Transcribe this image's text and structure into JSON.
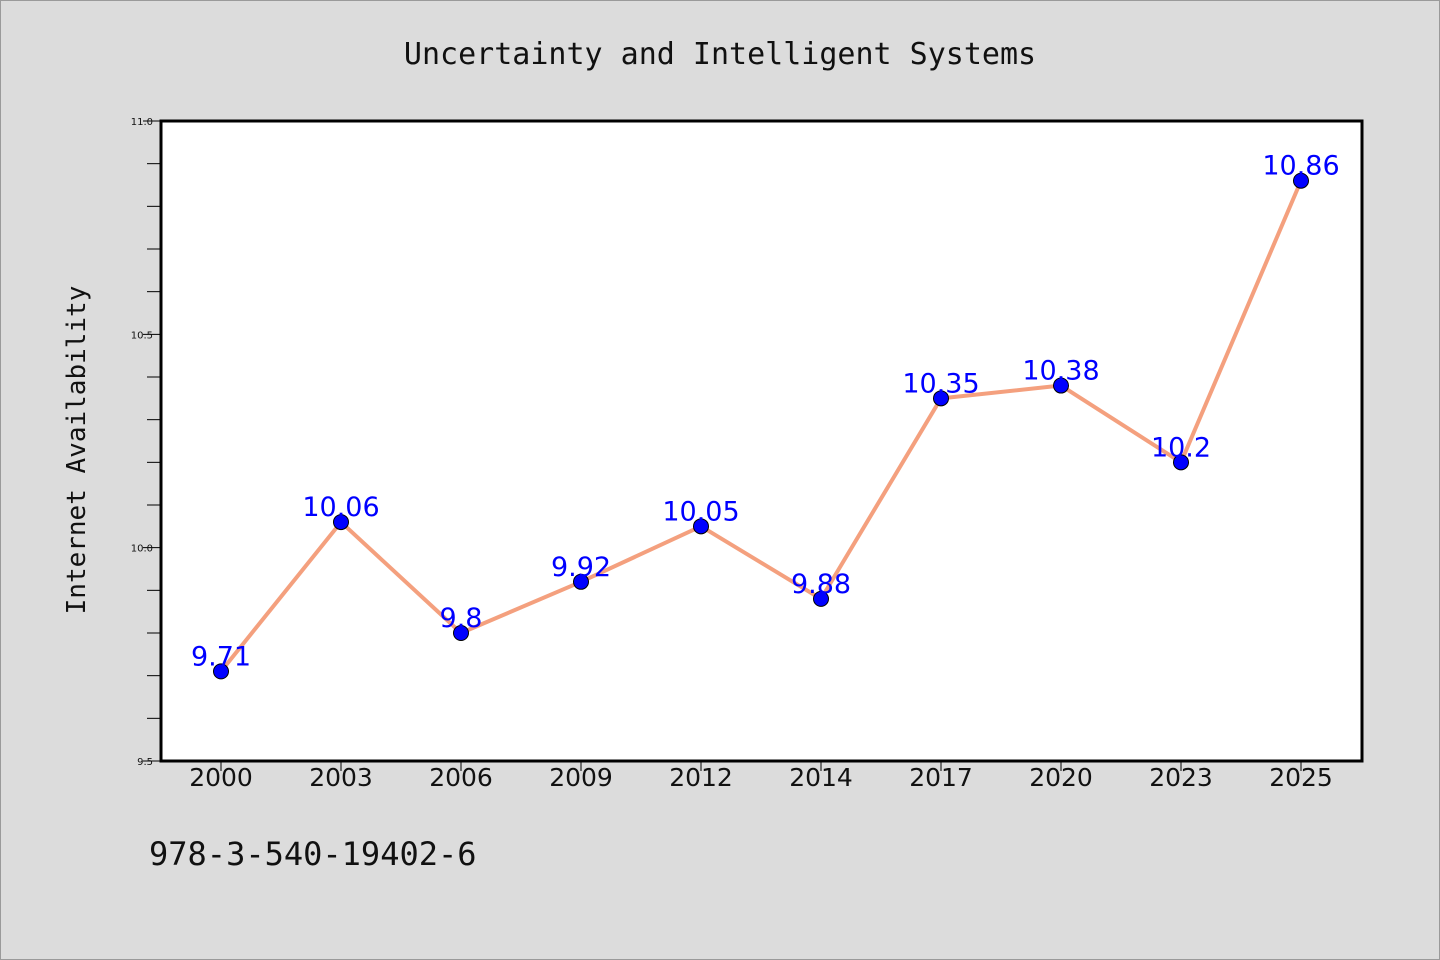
{
  "chart_data": {
    "type": "line",
    "title": "Uncertainty and Intelligent Systems",
    "xlabel": "",
    "ylabel": "Internet Availability",
    "categories": [
      "2000",
      "2003",
      "2006",
      "2009",
      "2012",
      "2014",
      "2017",
      "2020",
      "2023",
      "2025"
    ],
    "series": [
      {
        "values": [
          9.71,
          10.06,
          9.8,
          9.92,
          10.05,
          9.88,
          10.35,
          10.38,
          10.2,
          10.86
        ],
        "labels": [
          "9.71",
          "10.06",
          "9.8",
          "9.92",
          "10.05",
          "9.88",
          "10.35",
          "10.38",
          "10.2",
          "10.86"
        ]
      }
    ],
    "ylim": [
      9.5,
      11.0
    ],
    "yticks": [
      "9.5",
      "10.0",
      "10.5",
      "11.0"
    ],
    "grid": false,
    "legend": "none",
    "colors": {
      "line": "#f4a07e",
      "marker": "#0000ff",
      "data_label": "#0000ff",
      "background": "#dcdcdc",
      "plot_area": "#ffffff"
    }
  },
  "footer": {
    "isbn": "978-3-540-19402-6"
  }
}
